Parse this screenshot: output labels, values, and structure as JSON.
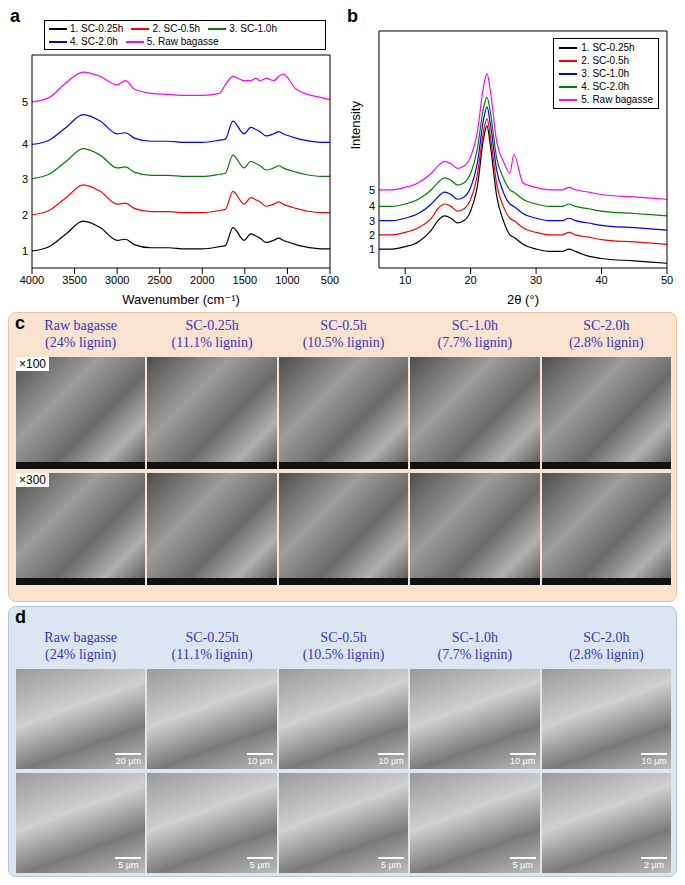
{
  "chart_data": [
    {
      "panel_label": "a",
      "type": "line",
      "x_label": "Wavenumber (cm⁻¹)",
      "x": [
        4000,
        3800,
        3600,
        3400,
        3200,
        3000,
        2900,
        2800,
        2600,
        2400,
        2200,
        2000,
        1800,
        1730,
        1640,
        1510,
        1430,
        1370,
        1320,
        1250,
        1160,
        1100,
        1050,
        900,
        800,
        600,
        500
      ],
      "xlim": [
        4000,
        500
      ],
      "xticks": [
        4000,
        3500,
        3000,
        2500,
        2000,
        1500,
        1000,
        500
      ],
      "ylim": [
        0,
        100
      ],
      "tick_labels": "x",
      "legend": "top",
      "series": [
        {
          "name": "1. SC-0.25h",
          "label": "1",
          "color": "#000000",
          "values": [
            8,
            10,
            16,
            22,
            19,
            13,
            13.5,
            11,
            9.5,
            9.5,
            9,
            9,
            10,
            10.5,
            19,
            13,
            16,
            15,
            14,
            12,
            13,
            14,
            13,
            11,
            10,
            9,
            9
          ]
        },
        {
          "name": "2. SC-0.5h",
          "label": "2",
          "color": "#ff0000",
          "values": [
            25,
            27,
            33,
            39,
            36,
            30,
            30.5,
            28,
            26.5,
            26.5,
            26,
            26,
            27,
            27.5,
            36,
            30,
            33,
            32,
            31,
            29,
            30,
            31,
            30,
            28,
            27,
            26,
            26
          ]
        },
        {
          "name": "3. SC-1.0h",
          "label": "3",
          "color": "#008000",
          "values": [
            42,
            44,
            50,
            56,
            53,
            47,
            47.5,
            45,
            43.5,
            43.5,
            43,
            43,
            44,
            44.5,
            53,
            47,
            50,
            49,
            48,
            46,
            47,
            48,
            47,
            45,
            44,
            43,
            43
          ]
        },
        {
          "name": "4. SC-2.0h",
          "label": "4",
          "color": "#0000ff",
          "values": [
            58,
            60,
            66,
            72,
            69,
            63,
            63.5,
            61,
            59.5,
            59.5,
            59,
            59,
            60,
            60.5,
            69,
            63,
            66,
            65,
            64,
            62,
            63,
            64,
            63,
            61,
            60,
            59,
            59
          ]
        },
        {
          "name": "5. Raw bagasse",
          "label": "5",
          "color": "#ff00ff",
          "values": [
            78,
            80,
            87,
            92,
            90,
            86,
            88,
            84,
            82,
            81.5,
            81,
            81,
            82,
            86,
            90,
            88,
            88,
            89,
            88,
            89,
            88,
            90,
            91,
            84,
            82,
            80,
            79
          ]
        }
      ]
    },
    {
      "panel_label": "b",
      "type": "line",
      "x_label": "2θ (°)",
      "y_label": "Intensity",
      "x": [
        6,
        8,
        10,
        12,
        14,
        15,
        16,
        17,
        18,
        19,
        20,
        21,
        22,
        22.5,
        23,
        24,
        25,
        26,
        26.6,
        28,
        30,
        32,
        34,
        35,
        36,
        38,
        40,
        45,
        50
      ],
      "xlim": [
        6,
        50
      ],
      "xticks": [
        10,
        20,
        30,
        40,
        50
      ],
      "ylim": [
        0,
        100
      ],
      "tick_labels": "x",
      "legend": "upper right",
      "series": [
        {
          "name": "1. SC-0.25h",
          "label": "1",
          "color": "#000000",
          "values": [
            8,
            8,
            9,
            11,
            16,
            20,
            22,
            21,
            19,
            20,
            24,
            34,
            55,
            60,
            52,
            30,
            20,
            14,
            13,
            10,
            8,
            7,
            7,
            8,
            7,
            5,
            4,
            3,
            2
          ]
        },
        {
          "name": "2. SC-0.5h",
          "label": "2",
          "color": "#ff0000",
          "values": [
            14,
            14,
            15,
            17,
            21,
            25,
            27,
            26,
            24,
            25,
            29,
            39,
            58,
            63,
            56,
            35,
            26,
            21,
            20,
            17,
            15,
            14,
            14,
            15,
            14,
            13,
            12,
            11,
            10
          ]
        },
        {
          "name": "3. SC-1.0h",
          "label": "3",
          "color": "#0000ff",
          "values": [
            20,
            20,
            21,
            23,
            27,
            30,
            32,
            31,
            29,
            30,
            34,
            44,
            63,
            68,
            61,
            41,
            32,
            27,
            26,
            23,
            21,
            20,
            20,
            21,
            20,
            19,
            18,
            17,
            16
          ]
        },
        {
          "name": "4. SC-2.0h",
          "label": "4",
          "color": "#008000",
          "values": [
            26,
            26,
            27,
            29,
            33,
            36,
            38,
            37,
            35,
            36,
            40,
            50,
            68,
            72,
            66,
            46,
            38,
            33,
            32,
            29,
            27,
            26,
            26,
            27,
            26,
            25,
            24,
            23,
            22
          ]
        },
        {
          "name": "5. Raw bagasse",
          "label": "5",
          "color": "#ff00ff",
          "values": [
            33,
            33,
            34,
            36,
            40,
            43,
            45,
            44,
            42,
            43,
            47,
            57,
            77,
            82,
            75,
            53,
            45,
            40,
            48,
            36,
            34,
            33,
            33,
            34,
            33,
            32,
            31,
            30,
            29
          ]
        }
      ]
    }
  ],
  "image_panels": [
    {
      "panel_label": "c",
      "columns": [
        {
          "name": "Raw bagasse",
          "lignin": "(24% lignin)"
        },
        {
          "name": "SC-0.25h",
          "lignin": "(11.1% lignin)"
        },
        {
          "name": "SC-0.5h",
          "lignin": "(10.5% lignin)"
        },
        {
          "name": "SC-1.0h",
          "lignin": "(7.7% lignin)"
        },
        {
          "name": "SC-2.0h",
          "lignin": "(2.8% lignin)"
        }
      ],
      "rows": [
        {
          "label": "×100"
        },
        {
          "label": "×300"
        }
      ]
    },
    {
      "panel_label": "d",
      "columns": [
        {
          "name": "Raw bagasse",
          "lignin": "(24% lignin)"
        },
        {
          "name": "SC-0.25h",
          "lignin": "(11.1% lignin)"
        },
        {
          "name": "SC-0.5h",
          "lignin": "(10.5% lignin)"
        },
        {
          "name": "SC-1.0h",
          "lignin": "(7.7% lignin)"
        },
        {
          "name": "SC-2.0h",
          "lignin": "(2.8% lignin)"
        }
      ],
      "rows": [
        {
          "scale_bars": [
            "20 μm",
            "10 μm",
            "10 μm",
            "10 μm",
            "10 μm"
          ]
        },
        {
          "scale_bars": [
            "5 μm",
            "5 μm",
            "5 μm",
            "5 μm",
            "2 μm"
          ]
        }
      ]
    }
  ]
}
